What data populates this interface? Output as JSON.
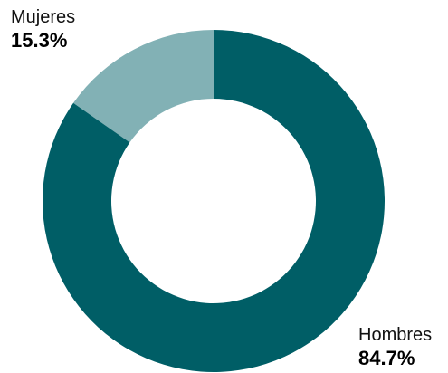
{
  "chart_data": {
    "type": "pie",
    "variant": "donut",
    "categories": [
      "Mujeres",
      "Hombres"
    ],
    "values": [
      15.3,
      84.7
    ],
    "value_labels": [
      "15.3%",
      "84.7%"
    ],
    "colors": [
      "#82B1B5",
      "#005E66"
    ],
    "start_angle_deg": 0,
    "direction": "counterclockwise"
  }
}
